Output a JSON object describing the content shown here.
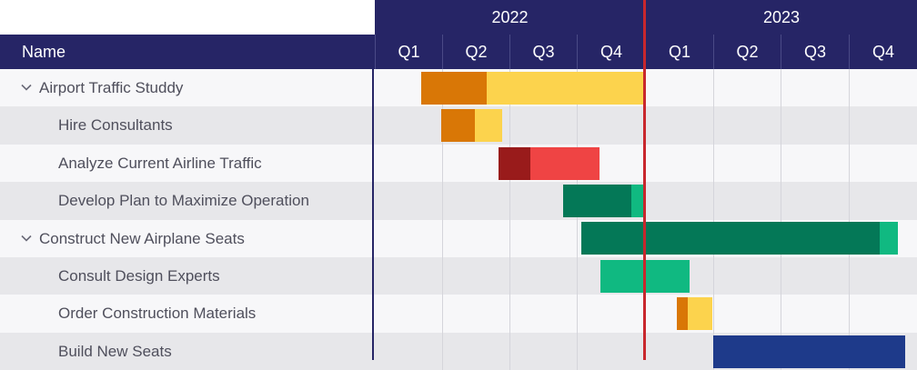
{
  "header": {
    "name_label": "Name",
    "years": [
      {
        "label": "2022"
      },
      {
        "label": "2023"
      }
    ],
    "quarters": [
      {
        "label": "Q1"
      },
      {
        "label": "Q2"
      },
      {
        "label": "Q3"
      },
      {
        "label": "Q4"
      },
      {
        "label": "Q1"
      },
      {
        "label": "Q2"
      },
      {
        "label": "Q3"
      },
      {
        "label": "Q4"
      }
    ]
  },
  "rows": [
    {
      "label": "Airport Traffic Studdy",
      "type": "group",
      "start_q": 0.68,
      "end_q": 4.0,
      "progress_end_q": 1.65,
      "color_done": "#d97706",
      "color_rest": "#fcd34d"
    },
    {
      "label": "Hire Consultants",
      "type": "task",
      "start_q": 0.98,
      "end_q": 1.88,
      "progress_end_q": 1.48,
      "color_done": "#d97706",
      "color_rest": "#fcd34d"
    },
    {
      "label": "Analyze Current Airline Traffic",
      "type": "task",
      "start_q": 1.83,
      "end_q": 3.32,
      "progress_end_q": 2.3,
      "color_done": "#991b1b",
      "color_rest": "#ef4444"
    },
    {
      "label": "Develop Plan to Maximize Operation",
      "type": "task",
      "start_q": 2.78,
      "end_q": 3.97,
      "progress_end_q": 3.78,
      "color_done": "#047857",
      "color_rest": "#10b981"
    },
    {
      "label": "Construct New Airplane Seats",
      "type": "group",
      "start_q": 3.05,
      "end_q": 7.72,
      "progress_end_q": 7.45,
      "color_done": "#047857",
      "color_rest": "#10b981"
    },
    {
      "label": "Consult Design Experts",
      "type": "task",
      "start_q": 3.33,
      "end_q": 4.64,
      "progress_end_q": 3.33,
      "color_done": "#047857",
      "color_rest": "#10b981"
    },
    {
      "label": "Order Construction Materials",
      "type": "task",
      "start_q": 4.46,
      "end_q": 4.98,
      "progress_end_q": 4.62,
      "color_done": "#d97706",
      "color_rest": "#fcd34d"
    },
    {
      "label": "Build New Seats",
      "type": "task",
      "start_q": 4.99,
      "end_q": 7.83,
      "progress_end_q": 4.99,
      "color_done": "#1e3a8a",
      "color_rest": "#1e3a8a"
    }
  ],
  "today_marker_q": 4.0
}
